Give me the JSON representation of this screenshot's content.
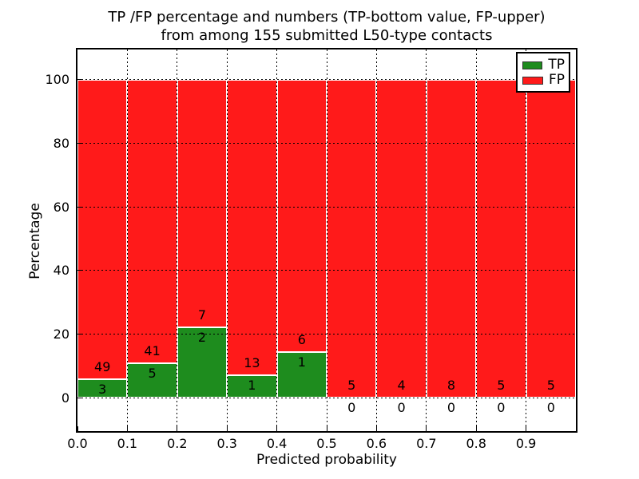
{
  "figure": {
    "background": "#ffffff",
    "text_color": "#000000"
  },
  "chart_data": {
    "type": "bar",
    "stacked": true,
    "title_lines": [
      "TP /FP percentage and numbers (TP-bottom value, FP-upper)",
      "from among 155 submitted L50-type contacts"
    ],
    "xlabel": "Predicted probability",
    "ylabel": "Percentage",
    "total_contacts": 155,
    "xlim": [
      0.0,
      1.0
    ],
    "ylim": [
      -10.5,
      109.5
    ],
    "x_ticks": [
      0.0,
      0.1,
      0.2,
      0.3,
      0.4,
      0.5,
      0.6,
      0.7,
      0.8,
      0.9
    ],
    "x_tick_labels": [
      "0.0",
      "0.1",
      "0.2",
      "0.3",
      "0.4",
      "0.5",
      "0.6",
      "0.7",
      "0.8",
      "0.9"
    ],
    "y_ticks": [
      0,
      20,
      40,
      60,
      80,
      100
    ],
    "y_tick_labels": [
      "0",
      "20",
      "40",
      "60",
      "80",
      "100"
    ],
    "grid": "dotted both axes at ticks",
    "bin_width": 0.1,
    "bins": [
      {
        "x_start": 0.0,
        "x_end": 0.1,
        "tp_count": 3,
        "fp_count": 49,
        "tp_pct": 5.77,
        "fp_pct": 94.23
      },
      {
        "x_start": 0.1,
        "x_end": 0.2,
        "tp_count": 5,
        "fp_count": 41,
        "tp_pct": 10.87,
        "fp_pct": 89.13
      },
      {
        "x_start": 0.2,
        "x_end": 0.3,
        "tp_count": 2,
        "fp_count": 7,
        "tp_pct": 22.22,
        "fp_pct": 77.78
      },
      {
        "x_start": 0.3,
        "x_end": 0.4,
        "tp_count": 1,
        "fp_count": 13,
        "tp_pct": 7.14,
        "fp_pct": 92.86
      },
      {
        "x_start": 0.4,
        "x_end": 0.5,
        "tp_count": 1,
        "fp_count": 6,
        "tp_pct": 14.29,
        "fp_pct": 85.71
      },
      {
        "x_start": 0.5,
        "x_end": 0.6,
        "tp_count": 0,
        "fp_count": 5,
        "tp_pct": 0,
        "fp_pct": 100
      },
      {
        "x_start": 0.6,
        "x_end": 0.7,
        "tp_count": 0,
        "fp_count": 4,
        "tp_pct": 0,
        "fp_pct": 100
      },
      {
        "x_start": 0.7,
        "x_end": 0.8,
        "tp_count": 0,
        "fp_count": 8,
        "tp_pct": 0,
        "fp_pct": 100
      },
      {
        "x_start": 0.8,
        "x_end": 0.9,
        "tp_count": 0,
        "fp_count": 5,
        "tp_pct": 0,
        "fp_pct": 100
      },
      {
        "x_start": 0.9,
        "x_end": 1.0,
        "tp_count": 0,
        "fp_count": 5,
        "tp_pct": 0,
        "fp_pct": 100
      }
    ],
    "series_colors": {
      "tp": "#1e8c1e",
      "fp": "#ff1a1a"
    },
    "bar_edge_color": "#ffffff",
    "grid_color": "#000000",
    "legend": {
      "position": "upper right",
      "entries": [
        {
          "label": "TP",
          "color": "#1e8c1e"
        },
        {
          "label": "FP",
          "color": "#ff1a1a"
        }
      ]
    }
  }
}
